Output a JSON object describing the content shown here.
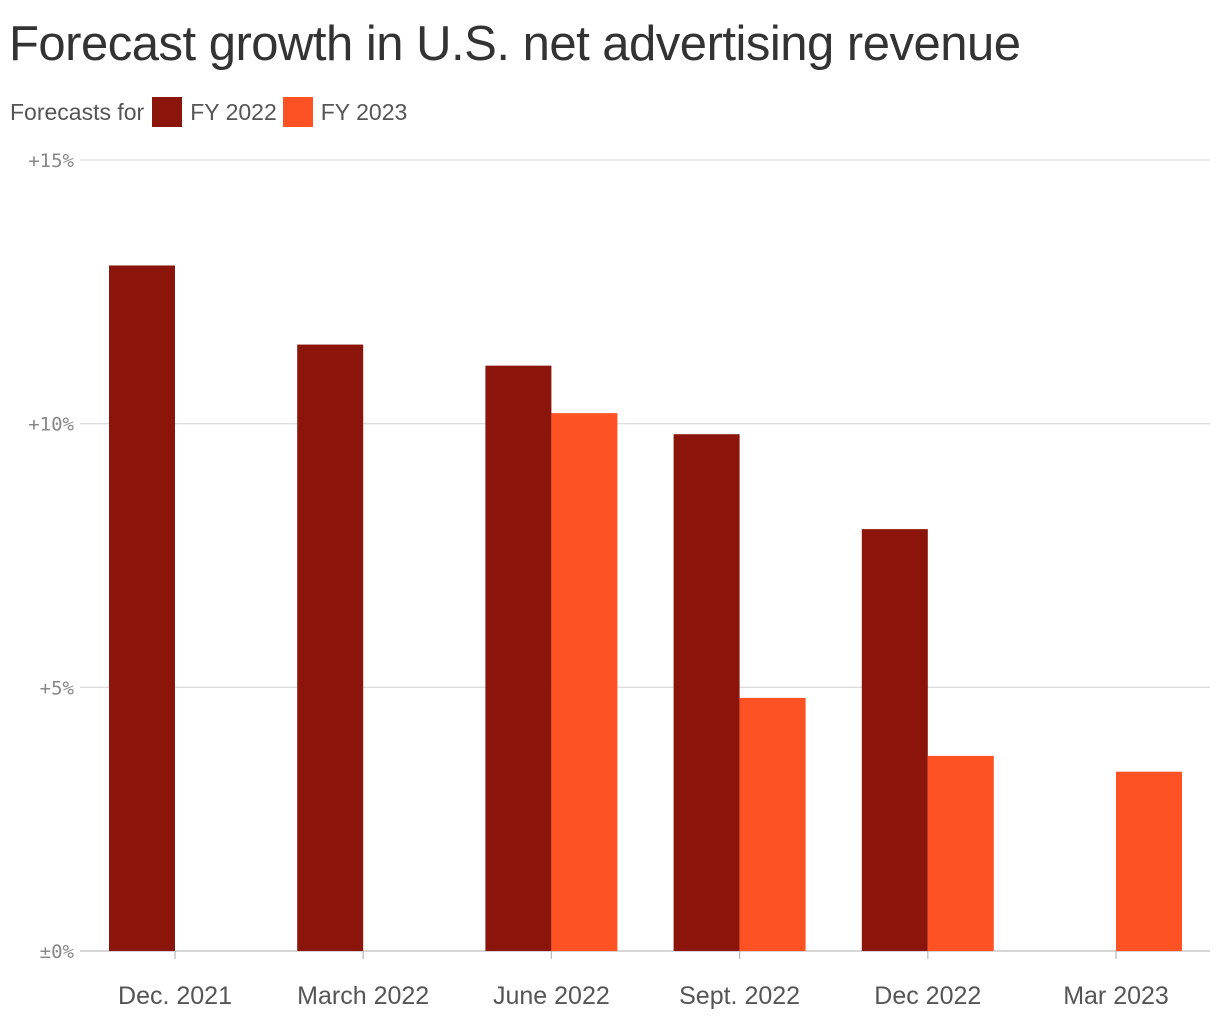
{
  "title": "Forecast growth in U.S. net advertising revenue",
  "legend": {
    "lead": "Forecasts for",
    "items": [
      {
        "label": "FY 2022",
        "color": "#8b150b"
      },
      {
        "label": "FY 2023",
        "color": "#ff5224"
      }
    ]
  },
  "chart_data": {
    "type": "bar",
    "title": "Forecast growth in U.S. net advertising revenue",
    "categories": [
      "Dec. 2021",
      "March 2022",
      "June 2022",
      "Sept. 2022",
      "Dec 2022",
      "Mar 2023"
    ],
    "series": [
      {
        "name": "FY 2022",
        "color": "#8b150b",
        "values": [
          13.0,
          11.5,
          11.1,
          9.8,
          8.0,
          null
        ]
      },
      {
        "name": "FY 2023",
        "color": "#ff5224",
        "values": [
          null,
          null,
          10.2,
          4.8,
          3.7,
          3.4
        ]
      }
    ],
    "ylim": [
      0,
      15
    ],
    "yticks": [
      {
        "value": 15,
        "label": "+15%"
      },
      {
        "value": 10,
        "label": "+10%"
      },
      {
        "value": 5,
        "label": "+5%"
      },
      {
        "value": 0,
        "label": "±0%"
      }
    ],
    "grid": true,
    "legend_position": "top-left"
  }
}
